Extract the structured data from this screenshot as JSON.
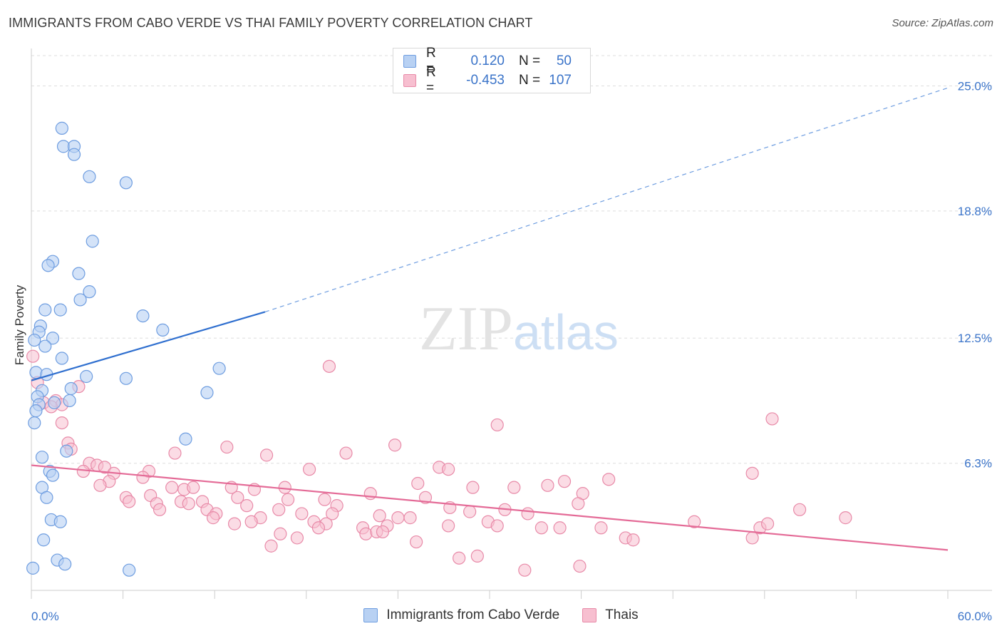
{
  "header": {
    "title": "IMMIGRANTS FROM CABO VERDE VS THAI FAMILY POVERTY CORRELATION CHART",
    "source": "Source: ZipAtlas.com"
  },
  "watermark": {
    "zip": "ZIP",
    "atlas": "atlas"
  },
  "legend": {
    "r_label": "R =",
    "n_label": "N =",
    "rows": [
      {
        "r": "0.120",
        "n": "50"
      },
      {
        "r": "-0.453",
        "n": "107"
      }
    ]
  },
  "bottom_legend": [
    "Immigrants from Cabo Verde",
    "Thais"
  ],
  "colors": {
    "blue_fill": "#b8d1f3",
    "blue_stroke": "#6e9de0",
    "blue_line": "#2f6fcf",
    "pink_fill": "#f7bfd0",
    "pink_stroke": "#e88aa8",
    "pink_line": "#e46b97",
    "axis_text": "#3b74c9",
    "grid": "#dedede"
  },
  "chart_data": {
    "type": "scatter",
    "title": "IMMIGRANTS FROM CABO VERDE VS THAI FAMILY POVERTY CORRELATION CHART",
    "xlabel": "",
    "ylabel": "Family Poverty",
    "xlim": [
      0,
      60
    ],
    "ylim": [
      0,
      26.5
    ],
    "x_tick_labels": [
      "0.0%",
      "60.0%"
    ],
    "y_ticks": [
      6.3,
      12.5,
      18.8,
      25.0
    ],
    "y_tick_labels": [
      "6.3%",
      "12.5%",
      "18.8%",
      "25.0%"
    ],
    "grid": true,
    "legend_position": "top-center",
    "series": [
      {
        "name": "Immigrants from Cabo Verde",
        "r": 0.12,
        "n": 50,
        "trend": {
          "x0": 0,
          "y0": 10.4,
          "x1": 15.3,
          "y1": 13.8,
          "dashed_to_x": 60,
          "dashed_to_y": 24.9
        },
        "points": [
          [
            2.0,
            22.9
          ],
          [
            2.1,
            22.0
          ],
          [
            2.8,
            22.0
          ],
          [
            2.8,
            21.6
          ],
          [
            3.8,
            20.5
          ],
          [
            6.2,
            20.2
          ],
          [
            4.0,
            17.3
          ],
          [
            1.4,
            16.3
          ],
          [
            1.1,
            16.1
          ],
          [
            3.1,
            15.7
          ],
          [
            3.8,
            14.8
          ],
          [
            3.2,
            14.4
          ],
          [
            0.9,
            13.9
          ],
          [
            1.9,
            13.9
          ],
          [
            7.3,
            13.6
          ],
          [
            0.6,
            13.1
          ],
          [
            0.5,
            12.8
          ],
          [
            8.6,
            12.9
          ],
          [
            0.2,
            12.4
          ],
          [
            1.4,
            12.5
          ],
          [
            0.9,
            12.1
          ],
          [
            2.0,
            11.5
          ],
          [
            12.3,
            11.0
          ],
          [
            0.3,
            10.8
          ],
          [
            1.0,
            10.7
          ],
          [
            3.6,
            10.6
          ],
          [
            6.2,
            10.5
          ],
          [
            0.7,
            9.9
          ],
          [
            2.6,
            10.0
          ],
          [
            11.5,
            9.8
          ],
          [
            0.4,
            9.6
          ],
          [
            1.5,
            9.3
          ],
          [
            2.5,
            9.4
          ],
          [
            0.5,
            9.2
          ],
          [
            0.3,
            8.9
          ],
          [
            0.2,
            8.3
          ],
          [
            10.1,
            7.5
          ],
          [
            2.3,
            6.9
          ],
          [
            0.7,
            6.6
          ],
          [
            1.2,
            5.9
          ],
          [
            1.4,
            5.7
          ],
          [
            0.7,
            5.1
          ],
          [
            1.0,
            4.6
          ],
          [
            1.3,
            3.5
          ],
          [
            1.9,
            3.4
          ],
          [
            0.8,
            2.5
          ],
          [
            1.7,
            1.5
          ],
          [
            2.2,
            1.3
          ],
          [
            6.4,
            1.0
          ],
          [
            0.1,
            1.1
          ]
        ]
      },
      {
        "name": "Thais",
        "r": -0.453,
        "n": 107,
        "trend": {
          "x0": 0,
          "y0": 6.2,
          "x1": 60,
          "y1": 2.0
        },
        "points": [
          [
            0.1,
            11.6
          ],
          [
            0.4,
            10.3
          ],
          [
            3.1,
            10.1
          ],
          [
            0.8,
            9.3
          ],
          [
            1.6,
            9.4
          ],
          [
            2.0,
            9.2
          ],
          [
            1.3,
            9.1
          ],
          [
            19.5,
            11.1
          ],
          [
            48.5,
            8.5
          ],
          [
            30.5,
            8.2
          ],
          [
            2.0,
            8.3
          ],
          [
            2.4,
            7.3
          ],
          [
            2.6,
            7.0
          ],
          [
            23.8,
            7.2
          ],
          [
            12.8,
            7.1
          ],
          [
            9.4,
            6.8
          ],
          [
            15.4,
            6.7
          ],
          [
            20.6,
            6.8
          ],
          [
            3.8,
            6.3
          ],
          [
            4.3,
            6.2
          ],
          [
            4.8,
            6.1
          ],
          [
            5.4,
            5.8
          ],
          [
            26.7,
            6.1
          ],
          [
            27.3,
            6.0
          ],
          [
            18.2,
            6.0
          ],
          [
            7.7,
            5.9
          ],
          [
            3.4,
            5.9
          ],
          [
            5.1,
            5.4
          ],
          [
            7.3,
            5.6
          ],
          [
            4.5,
            5.2
          ],
          [
            25.3,
            5.3
          ],
          [
            28.9,
            5.1
          ],
          [
            31.6,
            5.1
          ],
          [
            33.8,
            5.2
          ],
          [
            37.8,
            5.5
          ],
          [
            34.9,
            5.4
          ],
          [
            47.2,
            5.8
          ],
          [
            13.1,
            5.1
          ],
          [
            16.6,
            5.1
          ],
          [
            9.2,
            5.1
          ],
          [
            10.0,
            5.0
          ],
          [
            10.6,
            5.1
          ],
          [
            14.6,
            5.0
          ],
          [
            22.2,
            4.8
          ],
          [
            36.1,
            4.8
          ],
          [
            7.8,
            4.7
          ],
          [
            6.2,
            4.6
          ],
          [
            6.4,
            4.4
          ],
          [
            13.5,
            4.6
          ],
          [
            16.8,
            4.5
          ],
          [
            19.2,
            4.5
          ],
          [
            20.0,
            4.2
          ],
          [
            25.8,
            4.6
          ],
          [
            8.2,
            4.3
          ],
          [
            8.4,
            4.0
          ],
          [
            9.8,
            4.4
          ],
          [
            10.3,
            4.3
          ],
          [
            11.2,
            4.4
          ],
          [
            11.5,
            4.0
          ],
          [
            12.1,
            3.8
          ],
          [
            14.1,
            4.2
          ],
          [
            15.0,
            3.6
          ],
          [
            16.2,
            4.0
          ],
          [
            17.7,
            3.8
          ],
          [
            19.7,
            3.8
          ],
          [
            22.8,
            3.7
          ],
          [
            24.8,
            3.6
          ],
          [
            27.4,
            4.1
          ],
          [
            28.7,
            3.9
          ],
          [
            31.0,
            4.0
          ],
          [
            32.5,
            3.8
          ],
          [
            35.8,
            4.3
          ],
          [
            11.9,
            3.6
          ],
          [
            13.3,
            3.3
          ],
          [
            18.5,
            3.4
          ],
          [
            19.3,
            3.3
          ],
          [
            21.7,
            3.1
          ],
          [
            23.3,
            3.2
          ],
          [
            24.0,
            3.6
          ],
          [
            27.3,
            3.2
          ],
          [
            29.9,
            3.4
          ],
          [
            30.5,
            3.2
          ],
          [
            33.4,
            3.1
          ],
          [
            34.6,
            3.1
          ],
          [
            37.3,
            3.1
          ],
          [
            43.4,
            3.4
          ],
          [
            47.7,
            3.1
          ],
          [
            48.2,
            3.3
          ],
          [
            50.3,
            4.0
          ],
          [
            53.3,
            3.6
          ],
          [
            16.3,
            2.8
          ],
          [
            17.4,
            2.6
          ],
          [
            21.9,
            2.8
          ],
          [
            22.6,
            2.9
          ],
          [
            23.0,
            2.9
          ],
          [
            15.7,
            2.2
          ],
          [
            25.2,
            2.4
          ],
          [
            38.9,
            2.6
          ],
          [
            39.4,
            2.5
          ],
          [
            47.2,
            2.6
          ],
          [
            29.2,
            1.7
          ],
          [
            28.0,
            1.6
          ],
          [
            35.9,
            1.2
          ],
          [
            32.3,
            1.0
          ],
          [
            18.8,
            3.1
          ],
          [
            14.4,
            3.4
          ]
        ]
      }
    ]
  }
}
